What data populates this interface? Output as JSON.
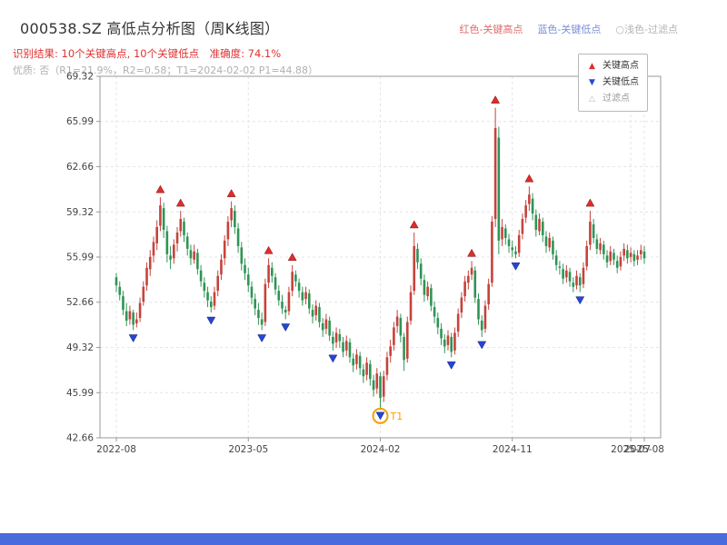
{
  "header": {
    "title": "000538.SZ 高低点分析图（周K线图）",
    "result_line": "识别结果: 10个关键高点, 10个关键低点　准确度: 74.1%",
    "quality_line": "优质: 否（R1=21.9%，R2=0.58；T1=2024-02-02 P1=44.88）",
    "mini_legend": [
      {
        "label": "红色-关键高点",
        "color": "#e06c6c"
      },
      {
        "label": "蓝色-关键低点",
        "color": "#7a8fd4"
      },
      {
        "label": "○浅色-过滤点",
        "color": "#b3b3b3"
      }
    ]
  },
  "colors": {
    "title_text": "#333333",
    "result_text": "#e03131",
    "quality_text": "#b0b0b0",
    "bottom_bar": "#4a6bdd"
  },
  "chart_data": {
    "type": "candlestick",
    "title": "000538.SZ 高低点分析图（周K线图）",
    "ylim": [
      42.66,
      69.32
    ],
    "y_ticks": [
      "42.66",
      "45.99",
      "49.32",
      "52.66",
      "55.99",
      "59.32",
      "62.66",
      "65.99",
      "69.32"
    ],
    "x_ticks": [
      {
        "week": 0,
        "label": "2022-08"
      },
      {
        "week": 39,
        "label": "2023-05"
      },
      {
        "week": 78,
        "label": "2024-02"
      },
      {
        "week": 117,
        "label": "2024-11"
      },
      {
        "week": 152,
        "label": "2025-07"
      },
      {
        "week": 156,
        "label": "2025-08"
      }
    ],
    "grid": true,
    "colors": {
      "up": "#c5433c",
      "down": "#2f9455",
      "marker_high": "#e02c2c",
      "marker_low": "#2646d4",
      "filter": "#bbbbbb",
      "t1": "#f59f00",
      "grid": "#e4e4e4",
      "axis": "#999999",
      "tick_text": "#444444"
    },
    "legend": {
      "items": [
        {
          "glyph": "▲",
          "label": "关键高点",
          "color": "#e02c2c",
          "text_color": "#333333"
        },
        {
          "glyph": "▼",
          "label": "关键低点",
          "color": "#2646d4",
          "text_color": "#333333"
        },
        {
          "glyph": "△",
          "label": "过滤点",
          "color": "#bbbbbb",
          "text_color": "#999999"
        }
      ]
    },
    "candles": [
      [
        54.5,
        54.8,
        53.4,
        53.9
      ],
      [
        53.8,
        54.2,
        52.8,
        53.2
      ],
      [
        53.1,
        53.5,
        51.7,
        52.1
      ],
      [
        52.0,
        52.6,
        50.9,
        51.3
      ],
      [
        51.4,
        52.4,
        51.0,
        52.0
      ],
      [
        51.9,
        52.1,
        50.6,
        51.0
      ],
      [
        51.1,
        51.9,
        50.8,
        51.4
      ],
      [
        51.5,
        53.0,
        51.2,
        52.6
      ],
      [
        52.7,
        54.2,
        52.4,
        53.8
      ],
      [
        53.9,
        55.6,
        53.5,
        55.2
      ],
      [
        55.1,
        56.5,
        54.6,
        56.0
      ],
      [
        56.1,
        57.5,
        55.6,
        57.1
      ],
      [
        57.0,
        58.7,
        56.5,
        58.2
      ],
      [
        58.3,
        60.4,
        57.9,
        59.8
      ],
      [
        59.6,
        60.0,
        57.4,
        58.0
      ],
      [
        57.9,
        58.3,
        55.6,
        56.2
      ],
      [
        56.1,
        56.8,
        55.1,
        55.8
      ],
      [
        55.9,
        57.3,
        55.5,
        56.9
      ],
      [
        57.0,
        58.2,
        56.4,
        57.8
      ],
      [
        57.9,
        59.4,
        57.5,
        58.8
      ],
      [
        58.6,
        58.9,
        57.1,
        57.6
      ],
      [
        57.5,
        57.8,
        56.1,
        56.6
      ],
      [
        56.5,
        56.9,
        55.4,
        55.9
      ],
      [
        55.8,
        56.9,
        55.5,
        56.4
      ],
      [
        56.3,
        56.6,
        54.7,
        55.1
      ],
      [
        55.0,
        55.4,
        53.8,
        54.2
      ],
      [
        54.1,
        54.5,
        53.0,
        53.5
      ],
      [
        53.4,
        53.8,
        52.3,
        52.8
      ],
      [
        52.7,
        53.1,
        51.9,
        52.3
      ],
      [
        52.4,
        53.8,
        52.1,
        53.4
      ],
      [
        53.5,
        55.0,
        53.1,
        54.6
      ],
      [
        54.7,
        56.2,
        54.3,
        55.8
      ],
      [
        55.9,
        57.6,
        55.4,
        57.2
      ],
      [
        57.3,
        59.0,
        56.8,
        58.6
      ],
      [
        58.7,
        60.1,
        58.2,
        59.6
      ],
      [
        59.4,
        59.8,
        57.7,
        58.2
      ],
      [
        58.1,
        58.5,
        56.3,
        56.8
      ],
      [
        56.7,
        57.1,
        55.0,
        55.5
      ],
      [
        55.4,
        55.9,
        54.3,
        54.8
      ],
      [
        54.7,
        55.2,
        53.4,
        53.9
      ],
      [
        53.8,
        54.2,
        52.5,
        53.0
      ],
      [
        52.9,
        53.3,
        51.7,
        52.2
      ],
      [
        52.1,
        52.6,
        51.0,
        51.5
      ],
      [
        51.4,
        51.9,
        50.6,
        51.0
      ],
      [
        51.2,
        54.4,
        50.9,
        54.0
      ],
      [
        54.1,
        55.9,
        53.7,
        55.4
      ],
      [
        55.2,
        55.6,
        54.1,
        54.6
      ],
      [
        54.5,
        54.8,
        53.2,
        53.6
      ],
      [
        53.5,
        53.9,
        52.4,
        52.8
      ],
      [
        52.7,
        53.2,
        51.8,
        52.2
      ],
      [
        52.1,
        52.4,
        51.4,
        51.9
      ],
      [
        52.0,
        53.8,
        51.7,
        53.4
      ],
      [
        53.5,
        55.4,
        53.1,
        54.9
      ],
      [
        54.7,
        55.0,
        53.8,
        54.2
      ],
      [
        54.1,
        54.4,
        53.0,
        53.5
      ],
      [
        53.4,
        53.8,
        52.4,
        52.8
      ],
      [
        52.9,
        53.8,
        52.5,
        53.4
      ],
      [
        53.3,
        53.6,
        51.8,
        52.2
      ],
      [
        52.1,
        52.5,
        51.1,
        51.6
      ],
      [
        51.7,
        52.8,
        51.3,
        52.4
      ],
      [
        52.3,
        52.6,
        50.8,
        51.2
      ],
      [
        51.1,
        51.5,
        50.1,
        50.6
      ],
      [
        50.7,
        51.8,
        50.3,
        51.4
      ],
      [
        51.3,
        51.6,
        49.8,
        50.2
      ],
      [
        50.1,
        50.5,
        49.1,
        49.6
      ],
      [
        49.7,
        50.8,
        49.3,
        50.4
      ],
      [
        50.3,
        50.7,
        49.3,
        49.8
      ],
      [
        49.7,
        50.1,
        48.6,
        49.0
      ],
      [
        49.1,
        50.2,
        48.7,
        49.8
      ],
      [
        49.7,
        50.0,
        48.2,
        48.6
      ],
      [
        48.5,
        48.9,
        47.5,
        48.0
      ],
      [
        48.1,
        49.2,
        47.7,
        48.8
      ],
      [
        48.7,
        49.0,
        47.3,
        47.8
      ],
      [
        47.7,
        48.1,
        46.7,
        47.2
      ],
      [
        47.3,
        48.6,
        46.9,
        48.2
      ],
      [
        48.1,
        48.4,
        46.5,
        47.0
      ],
      [
        46.9,
        47.3,
        45.7,
        46.2
      ],
      [
        46.3,
        47.8,
        45.9,
        47.4
      ],
      [
        47.2,
        47.5,
        44.88,
        45.6
      ],
      [
        45.7,
        47.6,
        45.3,
        47.2
      ],
      [
        47.3,
        49.0,
        46.9,
        48.6
      ],
      [
        48.7,
        49.9,
        48.2,
        49.4
      ],
      [
        49.5,
        51.2,
        49.1,
        50.8
      ],
      [
        50.9,
        52.1,
        50.4,
        51.6
      ],
      [
        51.5,
        51.8,
        49.7,
        50.2
      ],
      [
        50.1,
        50.4,
        47.6,
        48.4
      ],
      [
        48.5,
        51.6,
        48.2,
        51.2
      ],
      [
        51.3,
        53.9,
        51.0,
        53.4
      ],
      [
        53.5,
        57.8,
        53.2,
        56.8
      ],
      [
        56.6,
        57.0,
        55.1,
        55.6
      ],
      [
        55.5,
        55.9,
        53.9,
        54.4
      ],
      [
        54.3,
        54.7,
        52.7,
        53.2
      ],
      [
        53.1,
        54.2,
        52.8,
        53.8
      ],
      [
        53.7,
        54.0,
        52.0,
        52.4
      ],
      [
        52.3,
        52.7,
        51.1,
        51.6
      ],
      [
        51.5,
        51.9,
        50.3,
        50.8
      ],
      [
        50.7,
        51.1,
        49.5,
        50.0
      ],
      [
        49.9,
        50.3,
        48.9,
        49.4
      ],
      [
        49.5,
        50.6,
        49.1,
        50.2
      ],
      [
        50.1,
        50.4,
        48.6,
        49.0
      ],
      [
        49.1,
        50.8,
        48.8,
        50.4
      ],
      [
        50.5,
        52.2,
        50.1,
        51.8
      ],
      [
        51.9,
        53.4,
        51.5,
        53.0
      ],
      [
        53.1,
        54.6,
        52.7,
        54.2
      ],
      [
        54.1,
        55.0,
        53.6,
        54.6
      ],
      [
        54.7,
        55.7,
        54.3,
        55.2
      ],
      [
        55.0,
        55.3,
        52.6,
        53.0
      ],
      [
        52.9,
        53.3,
        51.0,
        51.4
      ],
      [
        51.3,
        51.7,
        50.1,
        50.6
      ],
      [
        50.7,
        52.8,
        50.4,
        52.4
      ],
      [
        52.5,
        54.4,
        52.1,
        54.0
      ],
      [
        54.1,
        59.0,
        53.8,
        58.6
      ],
      [
        58.8,
        67.0,
        58.2,
        65.5
      ],
      [
        64.8,
        65.6,
        56.2,
        57.2
      ],
      [
        57.3,
        58.8,
        56.8,
        58.2
      ],
      [
        58.1,
        58.4,
        56.9,
        57.4
      ],
      [
        57.3,
        57.7,
        56.3,
        56.8
      ],
      [
        56.7,
        57.2,
        56.0,
        56.5
      ],
      [
        56.4,
        56.8,
        55.9,
        56.2
      ],
      [
        56.3,
        58.0,
        56.0,
        57.6
      ],
      [
        57.7,
        59.2,
        57.3,
        58.8
      ],
      [
        58.9,
        60.2,
        58.5,
        59.8
      ],
      [
        59.9,
        61.2,
        59.4,
        60.6
      ],
      [
        60.3,
        60.7,
        58.7,
        59.2
      ],
      [
        59.1,
        59.5,
        57.5,
        58.0
      ],
      [
        57.9,
        59.2,
        57.6,
        58.8
      ],
      [
        58.6,
        58.9,
        57.1,
        57.6
      ],
      [
        57.5,
        57.9,
        56.3,
        56.8
      ],
      [
        56.7,
        57.8,
        56.4,
        57.4
      ],
      [
        57.2,
        57.5,
        55.8,
        56.2
      ],
      [
        56.1,
        56.5,
        55.0,
        55.4
      ],
      [
        55.3,
        55.7,
        54.7,
        55.2
      ],
      [
        55.1,
        55.5,
        54.0,
        54.4
      ],
      [
        54.5,
        55.4,
        54.1,
        55.0
      ],
      [
        54.9,
        55.2,
        53.8,
        54.2
      ],
      [
        54.1,
        54.5,
        53.4,
        53.8
      ],
      [
        53.9,
        55.0,
        53.6,
        54.6
      ],
      [
        54.5,
        54.8,
        53.4,
        53.9
      ],
      [
        54.0,
        55.6,
        53.7,
        55.2
      ],
      [
        55.3,
        57.2,
        55.0,
        56.8
      ],
      [
        56.9,
        59.4,
        56.5,
        58.6
      ],
      [
        58.4,
        58.8,
        57.0,
        57.4
      ],
      [
        57.3,
        57.7,
        56.2,
        56.6
      ],
      [
        56.5,
        57.4,
        56.2,
        57.0
      ],
      [
        56.9,
        57.2,
        55.8,
        56.2
      ],
      [
        56.1,
        56.5,
        55.2,
        55.6
      ],
      [
        55.7,
        56.8,
        55.4,
        56.4
      ],
      [
        56.3,
        56.6,
        55.4,
        55.8
      ],
      [
        55.7,
        56.1,
        54.8,
        55.2
      ],
      [
        55.3,
        56.4,
        55.0,
        56.0
      ],
      [
        56.1,
        57.0,
        55.7,
        56.6
      ],
      [
        56.5,
        56.9,
        55.5,
        55.9
      ],
      [
        56.0,
        56.7,
        55.6,
        56.3
      ],
      [
        56.2,
        56.5,
        55.3,
        55.7
      ],
      [
        55.8,
        56.5,
        55.4,
        56.1
      ],
      [
        56.2,
        56.9,
        55.8,
        56.5
      ],
      [
        56.4,
        56.8,
        55.5,
        55.9
      ]
    ],
    "key_highs": [
      {
        "week": 13,
        "price": 60.4
      },
      {
        "week": 19,
        "price": 59.4
      },
      {
        "week": 34,
        "price": 60.1
      },
      {
        "week": 45,
        "price": 55.9
      },
      {
        "week": 52,
        "price": 55.4
      },
      {
        "week": 88,
        "price": 57.8
      },
      {
        "week": 105,
        "price": 55.7
      },
      {
        "week": 112,
        "price": 67.0
      },
      {
        "week": 122,
        "price": 61.2
      },
      {
        "week": 140,
        "price": 59.4
      }
    ],
    "key_lows": [
      {
        "week": 5,
        "price": 50.6
      },
      {
        "week": 28,
        "price": 51.9
      },
      {
        "week": 43,
        "price": 50.6
      },
      {
        "week": 50,
        "price": 51.4
      },
      {
        "week": 64,
        "price": 49.1
      },
      {
        "week": 78,
        "price": 44.88
      },
      {
        "week": 99,
        "price": 48.6
      },
      {
        "week": 108,
        "price": 50.1
      },
      {
        "week": 118,
        "price": 55.9
      },
      {
        "week": 137,
        "price": 53.4
      }
    ],
    "filter_points": [],
    "t1": {
      "week": 78,
      "price": 44.88,
      "label": "T1"
    }
  }
}
